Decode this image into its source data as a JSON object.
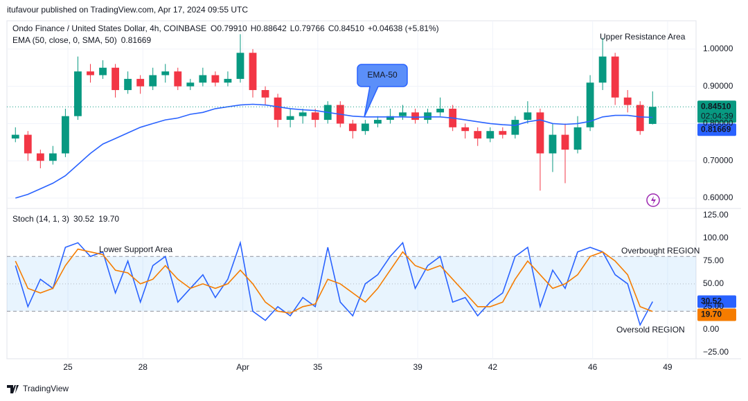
{
  "header": "itufavour published on TradingView.com, Apr 17, 2024 09:55 UTC",
  "footer": "TradingView",
  "chart_data": [
    {
      "type": "candlestick",
      "title": "Ondo Finance / United States Dollar, 4h, COINBASE",
      "ohlc_legend": [
        "O0.79910",
        "H0.88642",
        "L0.79766",
        "C0.84510",
        "+0.04638 (+5.81%)"
      ],
      "up_color": "#089981",
      "down_color": "#f23645",
      "xlim": [
        22.56,
        50
      ],
      "ylim": [
        0.574,
        1.076
      ],
      "yticks": [
        {
          "value": 0.6,
          "label": "0.60000"
        },
        {
          "value": 0.7,
          "label": "0.70000"
        },
        {
          "value": 0.8,
          "label": "0.80000"
        },
        {
          "value": 0.9,
          "label": "0.90000"
        },
        {
          "value": 1.0,
          "label": "1.00000"
        }
      ],
      "x": [
        22.9,
        23.4,
        23.9,
        24.4,
        24.9,
        25.4,
        25.9,
        26.4,
        26.9,
        27.4,
        27.9,
        28.4,
        28.9,
        29.4,
        29.9,
        30.4,
        30.9,
        31.4,
        31.9,
        32.4,
        32.9,
        33.4,
        33.9,
        34.4,
        34.9,
        35.4,
        35.9,
        36.4,
        36.9,
        37.4,
        37.9,
        38.4,
        38.9,
        39.4,
        39.9,
        40.4,
        40.9,
        41.4,
        41.9,
        42.4,
        42.9,
        43.4,
        43.9,
        44.4,
        44.9,
        45.4,
        45.9,
        46.4,
        46.9,
        47.4,
        47.9,
        48.4
      ],
      "open": [
        0.76,
        0.77,
        0.72,
        0.7,
        0.72,
        0.82,
        0.94,
        0.93,
        0.95,
        0.89,
        0.92,
        0.9,
        0.93,
        0.94,
        0.9,
        0.91,
        0.93,
        0.91,
        0.92,
        0.99,
        0.89,
        0.87,
        0.81,
        0.82,
        0.83,
        0.81,
        0.85,
        0.8,
        0.78,
        0.8,
        0.81,
        0.82,
        0.83,
        0.81,
        0.83,
        0.84,
        0.79,
        0.78,
        0.76,
        0.78,
        0.77,
        0.81,
        0.83,
        0.72,
        0.77,
        0.73,
        0.79,
        0.91,
        0.98,
        0.87,
        0.85,
        0.7991
      ],
      "high": [
        0.79,
        0.78,
        0.73,
        0.74,
        0.84,
        0.98,
        0.96,
        0.97,
        0.96,
        0.94,
        0.93,
        0.95,
        0.96,
        0.95,
        0.92,
        0.95,
        0.94,
        0.94,
        1.04,
        1.0,
        0.9,
        0.88,
        0.84,
        0.84,
        0.84,
        0.86,
        0.86,
        0.81,
        0.81,
        0.82,
        0.84,
        0.85,
        0.84,
        0.84,
        0.87,
        0.85,
        0.8,
        0.79,
        0.79,
        0.79,
        0.82,
        0.86,
        0.84,
        0.8,
        0.8,
        0.82,
        0.93,
        1.03,
        0.99,
        0.89,
        0.86,
        0.88642
      ],
      "low": [
        0.75,
        0.7,
        0.68,
        0.69,
        0.71,
        0.81,
        0.91,
        0.92,
        0.87,
        0.88,
        0.88,
        0.89,
        0.91,
        0.89,
        0.89,
        0.9,
        0.9,
        0.9,
        0.91,
        0.87,
        0.85,
        0.79,
        0.79,
        0.8,
        0.79,
        0.8,
        0.79,
        0.76,
        0.77,
        0.79,
        0.8,
        0.81,
        0.8,
        0.8,
        0.82,
        0.78,
        0.76,
        0.74,
        0.75,
        0.76,
        0.76,
        0.8,
        0.62,
        0.67,
        0.64,
        0.72,
        0.78,
        0.89,
        0.85,
        0.83,
        0.77,
        0.79766
      ],
      "close": [
        0.77,
        0.72,
        0.7,
        0.72,
        0.82,
        0.94,
        0.93,
        0.95,
        0.89,
        0.92,
        0.9,
        0.93,
        0.94,
        0.9,
        0.91,
        0.93,
        0.91,
        0.92,
        0.99,
        0.89,
        0.87,
        0.81,
        0.82,
        0.83,
        0.81,
        0.85,
        0.8,
        0.78,
        0.8,
        0.81,
        0.82,
        0.83,
        0.81,
        0.83,
        0.84,
        0.79,
        0.78,
        0.76,
        0.78,
        0.77,
        0.81,
        0.83,
        0.72,
        0.77,
        0.73,
        0.79,
        0.91,
        0.98,
        0.87,
        0.85,
        0.78,
        0.8451
      ],
      "series": [
        {
          "name": "EMA (50, close, 0, SMA, 50)",
          "color": "#2962ff",
          "values": [
            0.6,
            0.61,
            0.625,
            0.64,
            0.66,
            0.69,
            0.72,
            0.745,
            0.76,
            0.775,
            0.79,
            0.8,
            0.81,
            0.815,
            0.825,
            0.83,
            0.84,
            0.845,
            0.85,
            0.852,
            0.85,
            0.845,
            0.84,
            0.837,
            0.835,
            0.83,
            0.825,
            0.82,
            0.818,
            0.818,
            0.818,
            0.818,
            0.817,
            0.818,
            0.818,
            0.815,
            0.81,
            0.805,
            0.8,
            0.797,
            0.795,
            0.805,
            0.81,
            0.8,
            0.798,
            0.8,
            0.806,
            0.818,
            0.822,
            0.822,
            0.818,
            0.81669
          ]
        }
      ],
      "tags": [
        {
          "value": 0.8451,
          "label": "0.84510",
          "sublabel": "02:04:39",
          "color": "#089981"
        },
        {
          "value": 0.81669,
          "label": "0.81669",
          "color": "#2962ff"
        }
      ],
      "annotations": [
        "Upper Resistance Area",
        "EMA-50"
      ]
    },
    {
      "type": "line",
      "title": "Stoch (14, 1, 3)",
      "xlim": [
        22.56,
        50
      ],
      "ylim": [
        -32,
        131
      ],
      "xticks": [
        25,
        28,
        {
          "value": 32,
          "label": "Apr"
        },
        35,
        39,
        42,
        46,
        49
      ],
      "yticks": [
        {
          "value": -25,
          "label": "−25.00"
        },
        {
          "value": 0,
          "label": "0.00"
        },
        {
          "value": 25,
          "label": "25.00"
        },
        {
          "value": 50,
          "label": "50.00"
        },
        {
          "value": 75,
          "label": "75.00"
        },
        {
          "value": 100,
          "label": "100.00"
        },
        {
          "value": 125,
          "label": "125.00"
        }
      ],
      "band_lines": [
        80,
        50,
        20
      ],
      "band_fill": "rgba(33,150,243,0.1)",
      "x": [
        22.9,
        23.4,
        23.9,
        24.4,
        24.9,
        25.4,
        25.9,
        26.4,
        26.9,
        27.4,
        27.9,
        28.4,
        28.9,
        29.4,
        29.9,
        30.4,
        30.9,
        31.4,
        31.9,
        32.4,
        32.9,
        33.4,
        33.9,
        34.4,
        34.9,
        35.4,
        35.9,
        36.4,
        36.9,
        37.4,
        37.9,
        38.4,
        38.9,
        39.4,
        39.9,
        40.4,
        40.9,
        41.4,
        41.9,
        42.4,
        42.9,
        43.4,
        43.9,
        44.4,
        44.9,
        45.4,
        45.9,
        46.4,
        46.9,
        47.4,
        47.9,
        48.4
      ],
      "series": [
        {
          "color": "#2962ff",
          "values": [
            70,
            25,
            55,
            45,
            90,
            95,
            80,
            85,
            40,
            75,
            30,
            70,
            80,
            30,
            45,
            60,
            35,
            55,
            95,
            20,
            10,
            25,
            15,
            35,
            25,
            90,
            30,
            15,
            50,
            60,
            80,
            95,
            45,
            70,
            80,
            30,
            35,
            15,
            30,
            40,
            80,
            90,
            25,
            65,
            45,
            85,
            90,
            85,
            60,
            50,
            5,
            30.52
          ]
        },
        {
          "color": "#f57c00",
          "values": [
            75,
            45,
            40,
            45,
            70,
            88,
            85,
            82,
            65,
            62,
            50,
            55,
            70,
            55,
            45,
            50,
            45,
            50,
            65,
            50,
            30,
            20,
            18,
            25,
            28,
            55,
            50,
            40,
            30,
            45,
            65,
            85,
            70,
            65,
            70,
            55,
            40,
            25,
            25,
            30,
            55,
            75,
            60,
            45,
            50,
            60,
            80,
            85,
            75,
            60,
            25,
            19.7
          ]
        }
      ],
      "tags": [
        {
          "value": 30.52,
          "label": "30.52",
          "color": "#2962ff"
        },
        {
          "value": 19.7,
          "label": "19.70",
          "color": "#f57c00"
        }
      ],
      "annotations": [
        "Lower Support Area",
        "Overbought REGION",
        "Oversold REGION"
      ]
    }
  ]
}
